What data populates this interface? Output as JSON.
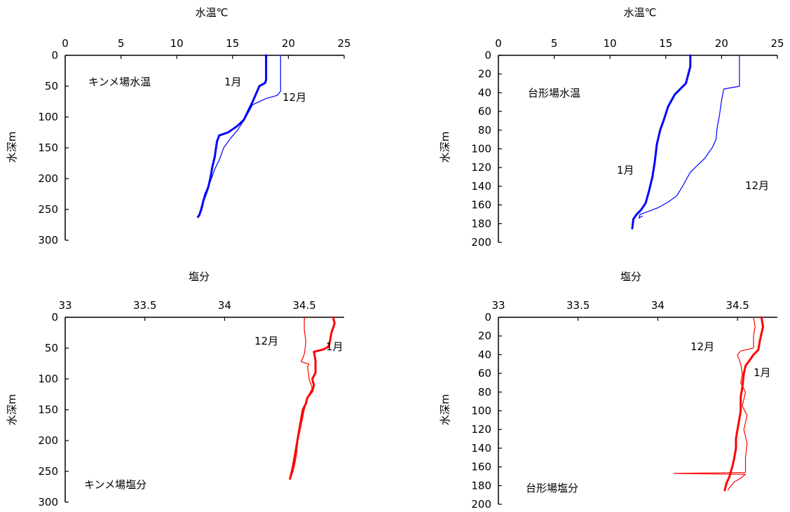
{
  "chart_data": [
    {
      "id": "kinme-temp",
      "type": "line",
      "title": "",
      "xlabel": "水温℃",
      "ylabel": "水深m",
      "x_axis_position": "top",
      "xlim": [
        0,
        25
      ],
      "ylim": [
        0,
        300
      ],
      "x_ticks": [
        "0",
        "5",
        "10",
        "15",
        "20",
        "25"
      ],
      "y_ticks": [
        "0",
        "50",
        "100",
        "150",
        "200",
        "250",
        "300"
      ],
      "grid": false,
      "annotations": [
        {
          "text": "キンメ場水温"
        },
        {
          "text": "1月"
        },
        {
          "text": "12月"
        }
      ],
      "series": [
        {
          "label": "1月",
          "color": "#0000ff",
          "style": "thick",
          "x": [
            18.0,
            18.0,
            17.9,
            17.4,
            16.8,
            16.4,
            16.0,
            15.4,
            14.6,
            13.8,
            13.6,
            13.4,
            13.2,
            13.0,
            12.8,
            12.4,
            12.2,
            12.0,
            11.9
          ],
          "y": [
            0,
            40,
            45,
            50,
            75,
            90,
            105,
            115,
            125,
            130,
            140,
            165,
            180,
            200,
            215,
            235,
            250,
            260,
            262
          ]
        },
        {
          "label": "12月",
          "color": "#0000ff",
          "style": "thin",
          "x": [
            19.3,
            19.3,
            19.0,
            18.0,
            16.8,
            16.2,
            15.5,
            14.8,
            14.2,
            13.8,
            13.4,
            13.0,
            12.5,
            12.2,
            12.0,
            11.9
          ],
          "y": [
            0,
            58,
            65,
            70,
            80,
            100,
            120,
            135,
            150,
            170,
            185,
            205,
            225,
            245,
            258,
            262
          ]
        }
      ]
    },
    {
      "id": "daikei-temp",
      "type": "line",
      "title": "",
      "xlabel": "水温℃",
      "ylabel": "水深m",
      "x_axis_position": "top",
      "xlim": [
        0,
        25
      ],
      "ylim": [
        0,
        200
      ],
      "x_ticks": [
        "0",
        "5",
        "10",
        "15",
        "20",
        "25"
      ],
      "y_ticks": [
        "0",
        "20",
        "40",
        "60",
        "80",
        "100",
        "120",
        "140",
        "160",
        "180",
        "200"
      ],
      "grid": false,
      "annotations": [
        {
          "text": "台形場水温"
        },
        {
          "text": "1月"
        },
        {
          "text": "12月"
        }
      ],
      "series": [
        {
          "label": "1月",
          "color": "#0000ff",
          "style": "thick",
          "x": [
            17.2,
            17.2,
            16.8,
            15.8,
            15.2,
            14.8,
            14.5,
            14.2,
            14.0,
            13.8,
            13.5,
            13.2,
            12.8,
            12.4,
            12.1,
            12.0
          ],
          "y": [
            0,
            12,
            30,
            42,
            55,
            70,
            80,
            95,
            115,
            130,
            145,
            158,
            165,
            170,
            175,
            185
          ]
        },
        {
          "label": "12月",
          "color": "#0000ff",
          "style": "thin",
          "x": [
            21.6,
            21.6,
            20.2,
            20.0,
            19.8,
            19.6,
            19.5,
            19.2,
            18.5,
            17.2,
            16.5,
            16.0,
            15.2,
            14.3,
            13.2,
            12.7,
            12.6,
            12.9
          ],
          "y": [
            0,
            33,
            36,
            48,
            65,
            78,
            90,
            98,
            110,
            125,
            140,
            150,
            157,
            163,
            168,
            170,
            174,
            172
          ]
        }
      ]
    },
    {
      "id": "kinme-sal",
      "type": "line",
      "title": "",
      "xlabel": "塩分",
      "ylabel": "水深m",
      "x_axis_position": "top",
      "xlim": [
        33,
        34.75
      ],
      "ylim": [
        0,
        300
      ],
      "x_ticks": [
        "33",
        "33.5",
        "34",
        "34.5"
      ],
      "y_ticks": [
        "0",
        "50",
        "100",
        "150",
        "200",
        "250",
        "300"
      ],
      "grid": false,
      "annotations": [
        {
          "text": "キンメ場塩分"
        },
        {
          "text": "12月"
        },
        {
          "text": "1月"
        }
      ],
      "series": [
        {
          "label": "1月",
          "color": "#ff0000",
          "style": "thick",
          "x": [
            34.68,
            34.69,
            34.67,
            34.66,
            34.65,
            34.62,
            34.56,
            34.57,
            34.57,
            34.55,
            34.56,
            34.55,
            34.52,
            34.51,
            34.49,
            34.48,
            34.47,
            34.46,
            34.45,
            34.44,
            34.43,
            34.42,
            34.41
          ],
          "y": [
            0,
            10,
            25,
            40,
            48,
            52,
            56,
            70,
            90,
            100,
            110,
            120,
            130,
            140,
            150,
            165,
            180,
            195,
            210,
            225,
            240,
            252,
            262
          ]
        },
        {
          "label": "12月",
          "color": "#ff0000",
          "style": "thin",
          "x": [
            34.5,
            34.5,
            34.51,
            34.5,
            34.48,
            34.53,
            34.52,
            34.53,
            34.55,
            34.52,
            34.5,
            34.48,
            34.46,
            34.45,
            34.43,
            34.41
          ],
          "y": [
            0,
            20,
            40,
            60,
            72,
            76,
            80,
            100,
            115,
            130,
            150,
            175,
            200,
            225,
            250,
            262
          ]
        }
      ]
    },
    {
      "id": "daikei-sal",
      "type": "line",
      "title": "",
      "xlabel": "塩分",
      "ylabel": "水深m",
      "x_axis_position": "top",
      "xlim": [
        33,
        34.75
      ],
      "ylim": [
        0,
        200
      ],
      "x_ticks": [
        "33",
        "33.5",
        "34",
        "34.5"
      ],
      "y_ticks": [
        "0",
        "20",
        "40",
        "60",
        "80",
        "100",
        "120",
        "140",
        "160",
        "180",
        "200"
      ],
      "grid": false,
      "annotations": [
        {
          "text": "台形場塩分"
        },
        {
          "text": "12月"
        },
        {
          "text": "1月"
        }
      ],
      "series": [
        {
          "label": "1月",
          "color": "#ff0000",
          "style": "thick",
          "x": [
            34.65,
            34.66,
            34.64,
            34.63,
            34.6,
            34.58,
            34.55,
            34.54,
            34.53,
            34.52,
            34.52,
            34.51,
            34.5,
            34.49,
            34.49,
            34.48,
            34.47,
            34.46,
            34.45,
            34.43,
            34.42
          ],
          "y": [
            0,
            10,
            25,
            35,
            40,
            45,
            52,
            60,
            75,
            85,
            100,
            110,
            120,
            130,
            140,
            150,
            158,
            164,
            170,
            178,
            185
          ]
        },
        {
          "label": "12月",
          "color": "#ff0000",
          "style": "thin",
          "x": [
            34.6,
            34.61,
            34.6,
            34.6,
            34.52,
            34.5,
            34.52,
            34.53,
            34.52,
            34.55,
            34.53,
            34.56,
            34.54,
            34.56,
            34.55,
            34.55,
            34.1,
            34.55,
            34.52,
            34.48,
            34.45,
            34.44
          ],
          "y": [
            0,
            10,
            20,
            33,
            36,
            40,
            50,
            60,
            70,
            80,
            95,
            105,
            120,
            135,
            150,
            166,
            167,
            168,
            172,
            176,
            182,
            185
          ]
        }
      ]
    }
  ]
}
